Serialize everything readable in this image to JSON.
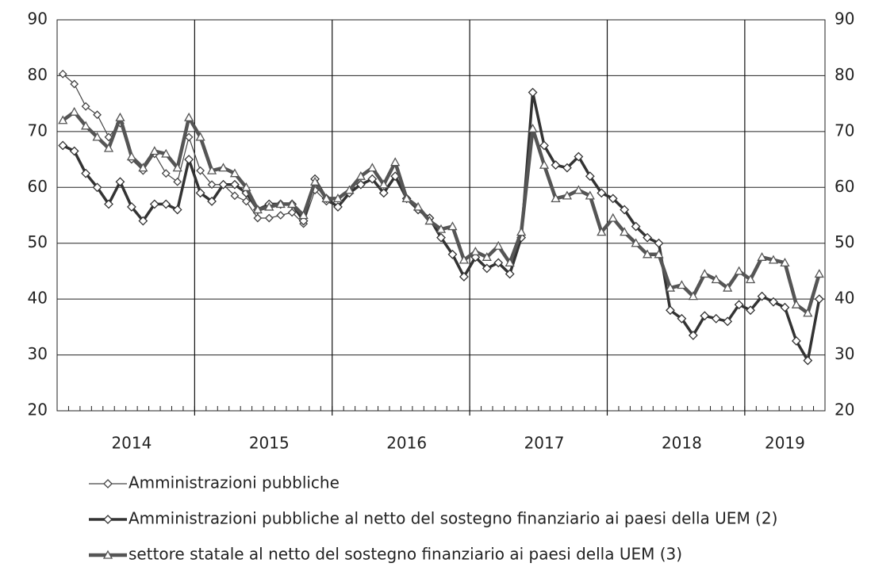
{
  "chart_data": {
    "type": "line",
    "categories": [
      null,
      null,
      null,
      null,
      null,
      null,
      "2014",
      null,
      null,
      null,
      null,
      null,
      null,
      null,
      null,
      null,
      null,
      null,
      "2015",
      null,
      null,
      null,
      null,
      null,
      null,
      null,
      null,
      null,
      null,
      null,
      "2016",
      null,
      null,
      null,
      null,
      null,
      null,
      null,
      null,
      null,
      null,
      null,
      "2017",
      null,
      null,
      null,
      null,
      null,
      null,
      null,
      null,
      null,
      null,
      null,
      "2018",
      null,
      null,
      null,
      null,
      null,
      null,
      null,
      null,
      "2019",
      null,
      null,
      null
    ],
    "series": [
      {
        "name": "Amministrazioni pubbliche",
        "color": "#444444",
        "marker": "diamond",
        "values": [
          80.3,
          78.5,
          74.5,
          73,
          69,
          71.5,
          65,
          63,
          66,
          62.5,
          61,
          69,
          63,
          60.5,
          60.5,
          58.5,
          57.5,
          54.5,
          54.5,
          55,
          55.5,
          53.5,
          59.5,
          57.5,
          56.5,
          59,
          60.5,
          61.5,
          59,
          62,
          58,
          56,
          54.5,
          51,
          48,
          44,
          47.5,
          45.5,
          46.5,
          44.5,
          51,
          77,
          67.5,
          64,
          63.5,
          65.5,
          62,
          59,
          58,
          56,
          53,
          51,
          50,
          38,
          36.5,
          33.5,
          37,
          36.5,
          36,
          39,
          38,
          40.5,
          39.5,
          38.5,
          32.5,
          29,
          40
        ]
      },
      {
        "name": "Amministrazioni pubbliche al netto del sostegno finanziario ai paesi della UEM (2)",
        "color": "#333333",
        "marker": "diamond",
        "values": [
          67.5,
          66.5,
          62.5,
          60,
          57,
          61,
          56.5,
          54,
          57,
          57,
          56,
          65,
          59,
          57.5,
          60.5,
          60.5,
          59,
          56,
          57,
          57,
          57,
          54,
          61.5,
          58,
          56.5,
          59,
          60.5,
          61.5,
          59,
          62,
          58,
          56,
          54.5,
          51,
          48,
          44,
          47.5,
          45.5,
          46.5,
          44.5,
          51,
          77,
          67.5,
          64,
          63.5,
          65.5,
          62,
          59,
          58,
          56,
          53,
          51,
          50,
          38,
          36.5,
          33.5,
          37,
          36.5,
          36,
          39,
          38,
          40.5,
          39.5,
          38.5,
          32.5,
          29,
          40
        ]
      },
      {
        "name": "settore statale al netto del sostegno finanziario ai paesi della UEM (3)",
        "color": "#555555",
        "marker": "triangle",
        "values": [
          72,
          73.5,
          71,
          69,
          67,
          72.5,
          65.5,
          63.5,
          66.5,
          66,
          63.5,
          72.5,
          69,
          63,
          63.5,
          62.5,
          60,
          56,
          56.5,
          57,
          57,
          55,
          61,
          58,
          58,
          59.5,
          62,
          63.5,
          60.5,
          64.5,
          58,
          56.5,
          54,
          52.5,
          53,
          47,
          48.5,
          47.5,
          49.5,
          46.5,
          52,
          70.5,
          64,
          58,
          58.5,
          59.5,
          58.5,
          52,
          54.5,
          52,
          50,
          48,
          48,
          42,
          42.5,
          40.5,
          44.5,
          43.5,
          42,
          45,
          43.5,
          47.5,
          47,
          46.5,
          39,
          37.5,
          44.5
        ]
      }
    ],
    "ylim": [
      20,
      90
    ],
    "yticks": [
      20,
      30,
      40,
      50,
      60,
      70,
      80,
      90
    ],
    "y2lim": [
      20,
      90
    ],
    "y2ticks": [
      20,
      30,
      40,
      50,
      60,
      70,
      80,
      90
    ],
    "grid": true,
    "legend": "bottom"
  }
}
